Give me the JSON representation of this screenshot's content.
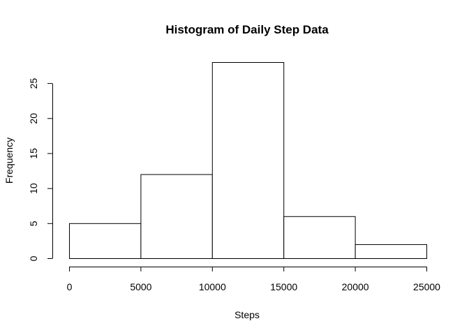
{
  "chart_data": {
    "type": "bar",
    "title": "Histogram of Daily Step Data",
    "xlabel": "Steps",
    "ylabel": "Frequency",
    "bins": [
      {
        "from": 0,
        "to": 5000,
        "count": 5
      },
      {
        "from": 5000,
        "to": 10000,
        "count": 12
      },
      {
        "from": 10000,
        "to": 15000,
        "count": 28
      },
      {
        "from": 15000,
        "to": 20000,
        "count": 6
      },
      {
        "from": 20000,
        "to": 25000,
        "count": 2
      }
    ],
    "xlim": [
      0,
      25000
    ],
    "ylim": [
      0,
      28
    ],
    "x_ticks": [
      0,
      5000,
      10000,
      15000,
      20000,
      25000
    ],
    "x_tick_labels": [
      "0",
      "5000",
      "10000",
      "15000",
      "20000",
      "25000"
    ],
    "y_ticks": [
      0,
      5,
      10,
      15,
      20,
      25
    ],
    "y_tick_labels": [
      "0",
      "5",
      "10",
      "15",
      "20",
      "25"
    ],
    "grid": false,
    "legend": "none",
    "colors": {
      "bar_fill": "#ffffff",
      "bar_stroke": "#000000"
    }
  }
}
